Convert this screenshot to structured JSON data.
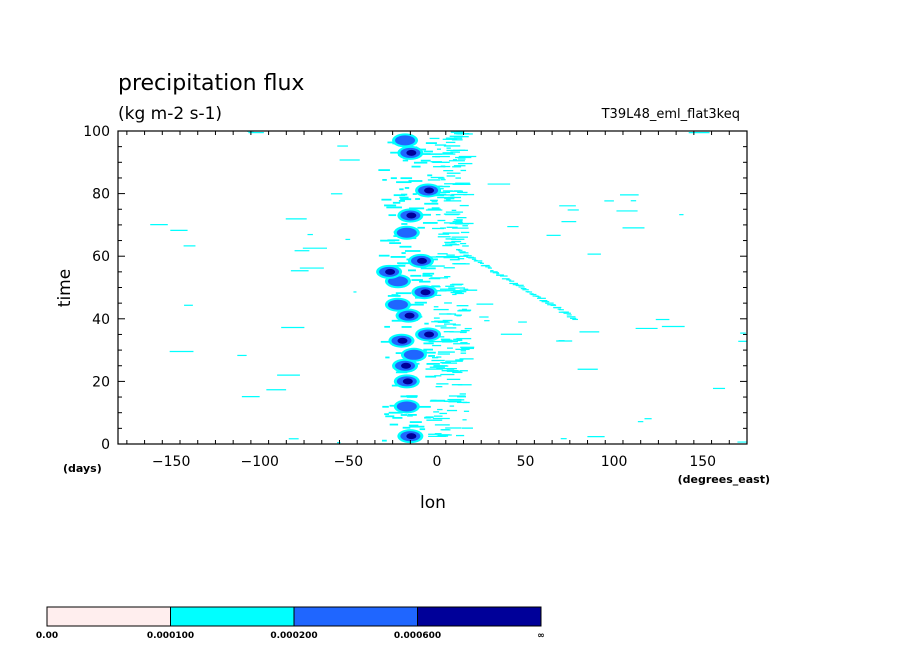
{
  "chart_data": {
    "type": "heatmap",
    "title": "precipitation flux",
    "subtitle": "(kg m-2 s-1)",
    "run_label": "T39L48_eml_flat3keq",
    "xlabel": "lon",
    "x_units": "(degrees_east)",
    "ylabel": "time",
    "y_units": "(days)",
    "xlim": [
      -180,
      175
    ],
    "ylim": [
      0,
      100
    ],
    "x_ticks": [
      {
        "value": -150,
        "label": "−150"
      },
      {
        "value": -100,
        "label": "−100"
      },
      {
        "value": -50,
        "label": "−50"
      },
      {
        "value": 0,
        "label": "0"
      },
      {
        "value": 50,
        "label": "50"
      },
      {
        "value": 100,
        "label": "100"
      },
      {
        "value": 150,
        "label": "150"
      }
    ],
    "y_ticks": [
      {
        "value": 0,
        "label": "0"
      },
      {
        "value": 20,
        "label": "20"
      },
      {
        "value": 40,
        "label": "40"
      },
      {
        "value": 60,
        "label": "60"
      },
      {
        "value": 80,
        "label": "80"
      },
      {
        "value": 100,
        "label": "100"
      }
    ],
    "grid": false,
    "levels": [
      {
        "label": "0.00",
        "color": "#ffeeee"
      },
      {
        "label": "0.000100",
        "color": "#00ffff"
      },
      {
        "label": "0.000200",
        "color": "#1f66ff"
      },
      {
        "label": "0.000600",
        "color": "#000099"
      },
      {
        "label": "∞",
        "color": null
      }
    ],
    "features": [
      {
        "lon": -15,
        "time": 2.5,
        "level": 3
      },
      {
        "lon": -17,
        "time": 12,
        "level": 2
      },
      {
        "lon": -17,
        "time": 20,
        "level": 3
      },
      {
        "lon": -18,
        "time": 25,
        "level": 3
      },
      {
        "lon": -13,
        "time": 28.5,
        "level": 2
      },
      {
        "lon": -20,
        "time": 33,
        "level": 3
      },
      {
        "lon": -5,
        "time": 35,
        "level": 3
      },
      {
        "lon": -16,
        "time": 41,
        "level": 3
      },
      {
        "lon": -22,
        "time": 44.5,
        "level": 2
      },
      {
        "lon": -7,
        "time": 48.5,
        "level": 3
      },
      {
        "lon": -22,
        "time": 52,
        "level": 2
      },
      {
        "lon": -27,
        "time": 55,
        "level": 3
      },
      {
        "lon": -9,
        "time": 58.5,
        "level": 3
      },
      {
        "lon": -17,
        "time": 67.5,
        "level": 2
      },
      {
        "lon": -15,
        "time": 73,
        "level": 3
      },
      {
        "lon": -5,
        "time": 81,
        "level": 3
      },
      {
        "lon": -15,
        "time": 93,
        "level": 3
      },
      {
        "lon": -18,
        "time": 97,
        "level": 2
      }
    ],
    "streaks": [
      {
        "lon0": -2,
        "lon1": 18,
        "t0": 2,
        "t1": 100
      },
      {
        "lon0": 12,
        "lon1": 78,
        "t0": 62,
        "t1": 40
      },
      {
        "lon0": -175,
        "lon1": 175,
        "t0": 0,
        "t1": 100
      }
    ]
  }
}
